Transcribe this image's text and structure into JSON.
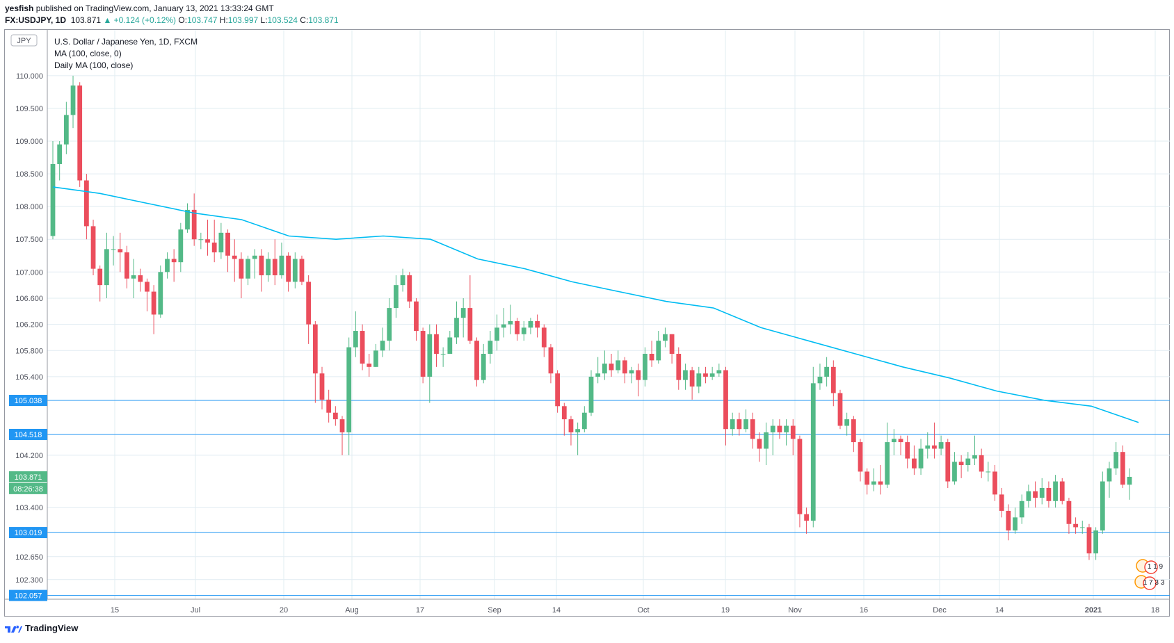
{
  "header": {
    "author": "yesfish",
    "published_text": "published on TradingView.com, January 13, 2021 13:33:24 GMT",
    "symbol": "FX:USDJPY, 1D",
    "last": "103.871",
    "change": "▲ +0.124 (+0.12%)",
    "o_label": "O:",
    "o_val": "103.747",
    "h_label": "H:",
    "h_val": "103.997",
    "l_label": "L:",
    "l_val": "103.524",
    "c_label": "C:",
    "c_val": "103.871"
  },
  "legend": {
    "currency": "JPY",
    "line1": "U.S. Dollar / Japanese Yen, 1D, FXCM",
    "line2": "MA (100, close, 0)",
    "line3": "Daily MA (100, close)"
  },
  "footer": {
    "brand": "TradingView"
  },
  "colors": {
    "up": "#53b987",
    "down": "#eb4d5c",
    "ma": "#00bcf2",
    "hline": "#2196f3",
    "grid": "#e1ecf2"
  },
  "chart_data": {
    "type": "candlestick",
    "title": "U.S. Dollar / Japanese Yen, 1D, FXCM",
    "ylim": [
      102.0,
      110.7
    ],
    "y_ticks": [
      "110.000",
      "109.500",
      "109.000",
      "108.500",
      "108.000",
      "107.500",
      "107.000",
      "106.600",
      "106.200",
      "105.800",
      "105.400",
      "104.200",
      "103.400",
      "102.650",
      "102.300"
    ],
    "x_ticks": [
      "15",
      "Jul",
      "20",
      "Aug",
      "17",
      "Sep",
      "14",
      "Oct",
      "19",
      "Nov",
      "16",
      "Dec",
      "14",
      "2021",
      "18"
    ],
    "horizontal_lines": [
      {
        "label": "105.038",
        "value": 105.038
      },
      {
        "label": "104.518",
        "value": 104.518
      },
      {
        "label": "103.019",
        "value": 103.019
      },
      {
        "label": "102.057",
        "value": 102.057
      }
    ],
    "last_price_label": "103.871",
    "countdown_label": "08:26:38",
    "event_badges": [
      "1 1 9",
      "1 7 3 3"
    ],
    "ma_100": [
      108.3,
      108.2,
      108.05,
      107.9,
      107.8,
      107.55,
      107.5,
      107.55,
      107.5,
      107.2,
      107.05,
      106.85,
      106.7,
      106.55,
      106.45,
      106.15,
      105.95,
      105.75,
      105.55,
      105.38,
      105.18,
      105.04,
      104.95,
      104.7
    ],
    "candles": [
      [
        107.55,
        108.65,
        109.0,
        107.5
      ],
      [
        108.65,
        108.95,
        109.0,
        108.4
      ],
      [
        108.95,
        109.4,
        109.6,
        108.8
      ],
      [
        109.4,
        109.85,
        110.0,
        109.2
      ],
      [
        109.85,
        108.4,
        109.9,
        108.3
      ],
      [
        108.4,
        107.7,
        108.5,
        107.5
      ],
      [
        107.7,
        107.05,
        107.8,
        106.95
      ],
      [
        107.05,
        106.8,
        107.1,
        106.55
      ],
      [
        106.8,
        107.35,
        107.6,
        106.6
      ],
      [
        107.35,
        107.35,
        107.55,
        107.1
      ],
      [
        107.35,
        107.3,
        107.6,
        107.0
      ],
      [
        107.3,
        106.9,
        107.4,
        106.75
      ],
      [
        106.9,
        106.95,
        107.2,
        106.6
      ],
      [
        106.95,
        106.85,
        107.05,
        106.7
      ],
      [
        106.85,
        106.7,
        106.9,
        106.4
      ],
      [
        106.7,
        106.35,
        106.8,
        106.05
      ],
      [
        106.35,
        107.0,
        107.1,
        106.3
      ],
      [
        107.0,
        107.2,
        107.3,
        106.9
      ],
      [
        107.2,
        107.15,
        107.35,
        106.85
      ],
      [
        107.15,
        107.65,
        107.75,
        107.0
      ],
      [
        107.65,
        107.95,
        108.05,
        107.6
      ],
      [
        107.95,
        107.5,
        108.2,
        107.4
      ],
      [
        107.5,
        107.5,
        107.6,
        107.35
      ],
      [
        107.5,
        107.45,
        107.8,
        107.25
      ],
      [
        107.45,
        107.3,
        107.8,
        107.15
      ],
      [
        107.3,
        107.6,
        107.75,
        107.2
      ],
      [
        107.6,
        107.25,
        107.65,
        107.0
      ],
      [
        107.25,
        107.2,
        107.5,
        106.85
      ],
      [
        107.2,
        106.9,
        107.3,
        106.6
      ],
      [
        106.9,
        107.2,
        107.25,
        106.8
      ],
      [
        107.2,
        107.25,
        107.35,
        106.9
      ],
      [
        107.25,
        106.95,
        107.35,
        106.7
      ],
      [
        106.95,
        107.2,
        107.3,
        106.85
      ],
      [
        107.2,
        106.95,
        107.5,
        106.8
      ],
      [
        106.95,
        107.25,
        107.45,
        106.9
      ],
      [
        107.25,
        106.85,
        107.3,
        106.7
      ],
      [
        106.85,
        107.2,
        107.3,
        106.75
      ],
      [
        107.2,
        106.85,
        107.25,
        106.8
      ],
      [
        106.85,
        106.2,
        106.95,
        105.9
      ],
      [
        106.2,
        105.45,
        106.25,
        105.0
      ],
      [
        105.45,
        105.05,
        105.55,
        104.9
      ],
      [
        105.05,
        104.85,
        105.2,
        104.7
      ],
      [
        104.85,
        104.75,
        104.95,
        104.65
      ],
      [
        104.75,
        104.55,
        104.8,
        104.2
      ],
      [
        104.55,
        105.85,
        106.0,
        104.2
      ],
      [
        105.85,
        106.1,
        106.4,
        105.7
      ],
      [
        106.1,
        105.6,
        106.2,
        105.5
      ],
      [
        105.6,
        105.55,
        105.75,
        105.4
      ],
      [
        105.55,
        105.8,
        105.9,
        105.55
      ],
      [
        105.8,
        105.95,
        106.15,
        105.7
      ],
      [
        105.95,
        106.45,
        106.6,
        105.8
      ],
      [
        106.45,
        106.8,
        106.95,
        106.3
      ],
      [
        106.8,
        106.95,
        107.05,
        106.7
      ],
      [
        106.95,
        106.55,
        107.0,
        106.45
      ],
      [
        106.55,
        106.1,
        106.6,
        105.95
      ],
      [
        106.1,
        105.4,
        106.15,
        105.3
      ],
      [
        105.4,
        106.05,
        106.2,
        105.0
      ],
      [
        106.05,
        105.75,
        106.2,
        105.55
      ],
      [
        105.75,
        105.75,
        105.85,
        105.55
      ],
      [
        105.75,
        106.0,
        106.1,
        105.8
      ],
      [
        106.0,
        106.3,
        106.55,
        105.9
      ],
      [
        106.3,
        106.45,
        106.6,
        106.0
      ],
      [
        106.45,
        105.95,
        106.95,
        105.9
      ],
      [
        105.95,
        105.35,
        106.0,
        105.25
      ],
      [
        105.35,
        105.75,
        105.9,
        105.3
      ],
      [
        105.75,
        105.95,
        106.1,
        105.6
      ],
      [
        105.95,
        106.15,
        106.35,
        105.8
      ],
      [
        106.15,
        106.2,
        106.45,
        106.0
      ],
      [
        106.2,
        106.25,
        106.5,
        106.05
      ],
      [
        106.25,
        106.05,
        106.3,
        105.95
      ],
      [
        106.05,
        106.15,
        106.25,
        105.95
      ],
      [
        106.15,
        106.25,
        106.3,
        106.05
      ],
      [
        106.25,
        106.15,
        106.35,
        106.0
      ],
      [
        106.15,
        105.85,
        106.2,
        105.7
      ],
      [
        105.85,
        105.45,
        105.9,
        105.3
      ],
      [
        105.45,
        104.95,
        105.5,
        104.85
      ],
      [
        104.95,
        104.75,
        105.0,
        104.5
      ],
      [
        104.75,
        104.55,
        104.8,
        104.35
      ],
      [
        104.55,
        104.6,
        104.7,
        104.2
      ],
      [
        104.6,
        104.85,
        104.95,
        104.55
      ],
      [
        104.85,
        105.4,
        105.5,
        104.8
      ],
      [
        105.4,
        105.45,
        105.7,
        105.3
      ],
      [
        105.45,
        105.6,
        105.8,
        105.35
      ],
      [
        105.6,
        105.5,
        105.75,
        105.4
      ],
      [
        105.5,
        105.65,
        105.8,
        105.45
      ],
      [
        105.65,
        105.45,
        105.7,
        105.3
      ],
      [
        105.45,
        105.5,
        105.55,
        105.3
      ],
      [
        105.5,
        105.35,
        105.6,
        105.1
      ],
      [
        105.35,
        105.75,
        105.85,
        105.25
      ],
      [
        105.75,
        105.65,
        105.95,
        105.55
      ],
      [
        105.65,
        105.95,
        106.1,
        105.6
      ],
      [
        105.95,
        106.05,
        106.15,
        105.85
      ],
      [
        106.05,
        105.75,
        106.05,
        105.6
      ],
      [
        105.75,
        105.35,
        105.85,
        105.2
      ],
      [
        105.35,
        105.5,
        105.6,
        105.2
      ],
      [
        105.5,
        105.25,
        105.55,
        105.05
      ],
      [
        105.25,
        105.45,
        105.55,
        105.15
      ],
      [
        105.45,
        105.4,
        105.55,
        105.3
      ],
      [
        105.4,
        105.45,
        105.55,
        105.35
      ],
      [
        105.45,
        105.5,
        105.6,
        105.4
      ],
      [
        105.5,
        104.6,
        105.55,
        104.35
      ],
      [
        104.6,
        104.75,
        104.85,
        104.5
      ],
      [
        104.75,
        104.6,
        104.85,
        104.5
      ],
      [
        104.6,
        104.75,
        104.9,
        104.55
      ],
      [
        104.75,
        104.45,
        104.85,
        104.3
      ],
      [
        104.45,
        104.3,
        104.55,
        104.1
      ],
      [
        104.3,
        104.55,
        104.7,
        104.05
      ],
      [
        104.55,
        104.65,
        104.75,
        104.2
      ],
      [
        104.65,
        104.55,
        104.75,
        104.45
      ],
      [
        104.55,
        104.65,
        104.75,
        104.35
      ],
      [
        104.65,
        104.45,
        104.75,
        104.2
      ],
      [
        104.45,
        103.3,
        104.5,
        103.1
      ],
      [
        103.3,
        103.2,
        103.4,
        103.0
      ],
      [
        103.2,
        105.3,
        105.55,
        103.1
      ],
      [
        105.3,
        105.4,
        105.6,
        105.2
      ],
      [
        105.4,
        105.55,
        105.7,
        105.25
      ],
      [
        105.55,
        105.15,
        105.65,
        104.95
      ],
      [
        105.15,
        104.65,
        105.2,
        104.6
      ],
      [
        104.65,
        104.75,
        104.85,
        104.5
      ],
      [
        104.75,
        104.4,
        104.8,
        104.25
      ],
      [
        104.4,
        103.95,
        104.45,
        103.8
      ],
      [
        103.95,
        103.75,
        104.0,
        103.6
      ],
      [
        103.75,
        103.8,
        104.0,
        103.65
      ],
      [
        103.8,
        103.75,
        104.05,
        103.6
      ],
      [
        103.75,
        104.4,
        104.7,
        103.7
      ],
      [
        104.4,
        104.45,
        104.6,
        104.2
      ],
      [
        104.45,
        104.4,
        104.5,
        104.2
      ],
      [
        104.4,
        104.15,
        104.5,
        104.0
      ],
      [
        104.15,
        104.0,
        104.35,
        103.9
      ],
      [
        104.0,
        104.3,
        104.45,
        103.9
      ],
      [
        104.3,
        104.35,
        104.55,
        104.15
      ],
      [
        104.35,
        104.3,
        104.7,
        104.15
      ],
      [
        104.3,
        104.4,
        104.5,
        104.2
      ],
      [
        104.4,
        103.8,
        104.45,
        103.7
      ],
      [
        103.8,
        104.1,
        104.25,
        103.75
      ],
      [
        104.1,
        104.05,
        104.2,
        103.85
      ],
      [
        104.05,
        104.15,
        104.25,
        103.95
      ],
      [
        104.15,
        104.2,
        104.5,
        104.05
      ],
      [
        104.2,
        103.95,
        104.3,
        103.85
      ],
      [
        103.95,
        103.95,
        104.1,
        103.8
      ],
      [
        103.95,
        103.6,
        104.05,
        103.5
      ],
      [
        103.6,
        103.35,
        103.7,
        103.25
      ],
      [
        103.35,
        103.05,
        103.45,
        102.9
      ],
      [
        103.05,
        103.25,
        103.4,
        103.0
      ],
      [
        103.25,
        103.5,
        103.6,
        103.15
      ],
      [
        103.5,
        103.65,
        103.75,
        103.4
      ],
      [
        103.65,
        103.55,
        103.8,
        103.4
      ],
      [
        103.55,
        103.7,
        103.85,
        103.45
      ],
      [
        103.7,
        103.5,
        103.8,
        103.4
      ],
      [
        103.5,
        103.8,
        103.9,
        103.4
      ],
      [
        103.8,
        103.5,
        103.85,
        103.45
      ],
      [
        103.5,
        103.15,
        103.55,
        103.0
      ],
      [
        103.15,
        103.1,
        103.25,
        103.0
      ],
      [
        103.1,
        103.1,
        103.2,
        103.0
      ],
      [
        103.1,
        102.7,
        103.15,
        102.6
      ],
      [
        102.7,
        103.05,
        103.1,
        102.6
      ],
      [
        103.05,
        103.8,
        103.95,
        103.0
      ],
      [
        103.8,
        104.0,
        104.1,
        103.55
      ],
      [
        104.0,
        104.25,
        104.4,
        103.9
      ],
      [
        104.25,
        103.75,
        104.35,
        103.7
      ],
      [
        103.75,
        103.87,
        104.0,
        103.52
      ]
    ]
  }
}
